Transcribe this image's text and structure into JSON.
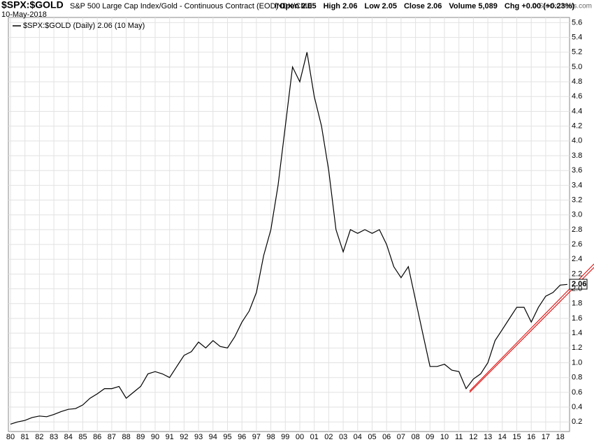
{
  "chart_data": {
    "type": "line",
    "title": "$SPX:$GOLD",
    "subtitle": "S&P 500 Large Cap Index/Gold - Continuous Contract (EOD)",
    "exchange": "INDX/CME",
    "date": "10-May-2018",
    "quote": [
      "Open 2.05",
      "High 2.06",
      "Low 2.05",
      "Close 2.06",
      "Volume 5,089",
      "Chg +0.00 (+0.23%)"
    ],
    "credit": "© StockCharts.com",
    "last_label": "2.06",
    "categories": [
      "80",
      null,
      "81",
      null,
      "82",
      null,
      "83",
      null,
      "84",
      null,
      "85",
      null,
      "86",
      null,
      "87",
      null,
      "88",
      null,
      "89",
      null,
      "90",
      null,
      "91",
      null,
      "92",
      null,
      "93",
      null,
      "94",
      null,
      "95",
      null,
      "96",
      null,
      "97",
      null,
      "98",
      null,
      "99",
      null,
      "00",
      null,
      "01",
      null,
      "02",
      null,
      "03",
      null,
      "04",
      null,
      "05",
      null,
      "06",
      null,
      "07",
      null,
      "08",
      null,
      "09",
      null,
      "10",
      null,
      "11",
      null,
      "12",
      null,
      "13",
      null,
      "14",
      null,
      "15",
      null,
      "16",
      null,
      "17",
      null,
      "18",
      null
    ],
    "series": [
      {
        "name": "$SPX:$GOLD (Daily) 2.06 (10 May)",
        "color": "#000000",
        "values": [
          0.17,
          0.2,
          0.22,
          0.26,
          0.28,
          0.27,
          0.3,
          0.34,
          0.37,
          0.38,
          0.43,
          0.52,
          0.58,
          0.65,
          0.65,
          0.68,
          0.52,
          0.6,
          0.68,
          0.85,
          0.88,
          0.85,
          0.8,
          0.95,
          1.1,
          1.15,
          1.28,
          1.2,
          1.3,
          1.22,
          1.2,
          1.35,
          1.55,
          1.7,
          1.95,
          2.45,
          2.8,
          3.4,
          4.2,
          5.0,
          4.8,
          5.2,
          4.6,
          4.2,
          3.6,
          2.8,
          2.5,
          2.8,
          2.75,
          2.8,
          2.75,
          2.8,
          2.6,
          2.3,
          2.15,
          2.3,
          1.85,
          1.4,
          0.95,
          0.95,
          0.98,
          0.9,
          0.88,
          0.65,
          0.78,
          0.85,
          1.0,
          1.3,
          1.45,
          1.6,
          1.75,
          1.75,
          1.55,
          1.75,
          1.9,
          1.95,
          2.05,
          2.06
        ]
      }
    ],
    "ylim": [
      0.07,
      5.67
    ],
    "yticks": [
      0.2,
      0.4,
      0.6,
      0.8,
      {
        "value": 1,
        "label": "1.0"
      },
      1.2,
      1.4,
      1.6,
      1.8,
      {
        "value": 2,
        "label": "2.0"
      },
      2.2,
      2.4,
      2.6,
      2.8,
      {
        "value": 3,
        "label": "3.0"
      },
      3.2,
      3.4,
      3.6,
      3.8,
      {
        "value": 4,
        "label": "4.0"
      },
      4.2,
      4.4,
      4.6,
      4.8,
      {
        "value": 5,
        "label": "5.0"
      },
      5.2,
      5.4,
      5.6
    ],
    "grid": true
  }
}
